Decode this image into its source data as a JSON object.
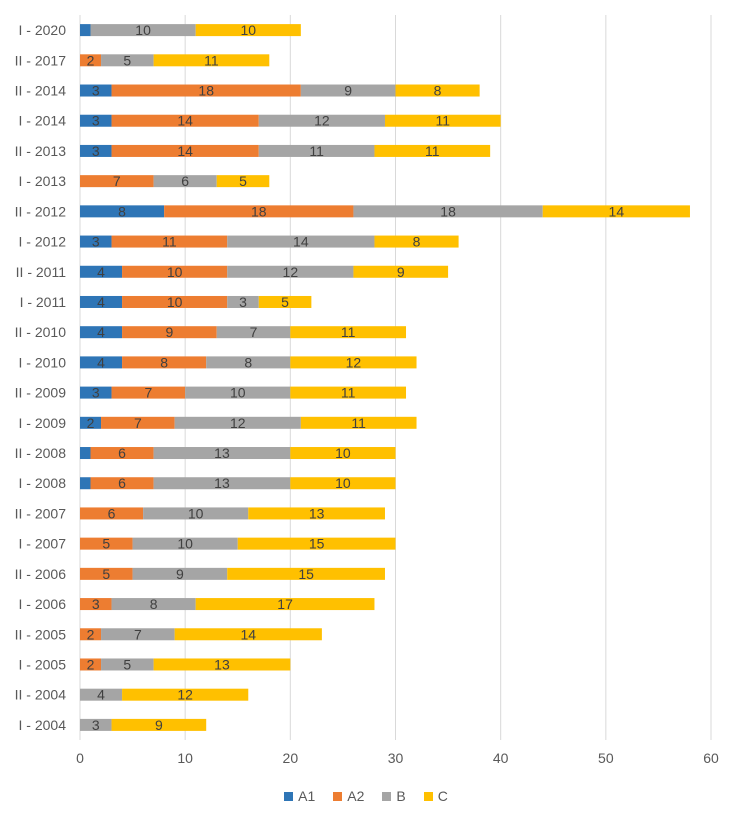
{
  "chart_data": {
    "type": "bar",
    "orientation": "horizontal",
    "stacked": true,
    "categories": [
      "I - 2020",
      "II - 2017",
      "II - 2014",
      "I - 2014",
      "II - 2013",
      "I - 2013",
      "II - 2012",
      "I - 2012",
      "II - 2011",
      "I - 2011",
      "II - 2010",
      "I - 2010",
      "II - 2009",
      "I - 2009",
      "II - 2008",
      "I - 2008",
      "II - 2007",
      "I - 2007",
      "II - 2006",
      "I - 2006",
      "II - 2005",
      "I - 2005",
      "II - 2004",
      "I - 2004"
    ],
    "series": [
      {
        "name": "A1",
        "color": "#2E75B6",
        "values": [
          1,
          0,
          3,
          3,
          3,
          0,
          8,
          3,
          4,
          4,
          4,
          4,
          3,
          2,
          1,
          1,
          0,
          0,
          0,
          0,
          0,
          0,
          0,
          0
        ]
      },
      {
        "name": "A2",
        "color": "#ED7D31",
        "values": [
          0,
          2,
          18,
          14,
          14,
          7,
          18,
          11,
          10,
          10,
          9,
          8,
          7,
          7,
          6,
          6,
          6,
          5,
          5,
          3,
          2,
          2,
          0,
          0
        ]
      },
      {
        "name": "B",
        "color": "#A5A5A5",
        "values": [
          10,
          5,
          9,
          12,
          11,
          6,
          18,
          14,
          12,
          3,
          7,
          8,
          10,
          12,
          13,
          13,
          10,
          10,
          9,
          8,
          7,
          5,
          4,
          3
        ]
      },
      {
        "name": "C",
        "color": "#FFC000",
        "values": [
          10,
          11,
          8,
          11,
          11,
          5,
          14,
          8,
          9,
          5,
          11,
          12,
          11,
          11,
          10,
          10,
          13,
          15,
          15,
          17,
          14,
          13,
          12,
          9
        ]
      }
    ],
    "data_labels": [
      [
        "",
        "10",
        "10"
      ],
      [
        "2",
        "5",
        "11"
      ],
      [
        "3",
        "18",
        "9",
        "8"
      ],
      [
        "3",
        "14",
        "12",
        "11"
      ],
      [
        "3",
        "14",
        "11",
        "11"
      ],
      [
        "7",
        "6",
        "5"
      ],
      [
        "8",
        "18",
        "18",
        "14"
      ],
      [
        "3",
        "11",
        "14",
        "8"
      ],
      [
        "4",
        "10",
        "12",
        "9"
      ],
      [
        "4",
        "10",
        "3",
        "5"
      ],
      [
        "4",
        "9",
        "7",
        "11"
      ],
      [
        "4",
        "8",
        "8",
        "12"
      ],
      [
        "3",
        "7",
        "10",
        "11"
      ],
      [
        "2",
        "7",
        "12",
        "11"
      ],
      [
        "",
        "6",
        "13",
        "10"
      ],
      [
        "",
        "6",
        "13",
        "10"
      ],
      [
        "6",
        "10",
        "13"
      ],
      [
        "5",
        "10",
        "15"
      ],
      [
        "5",
        "9",
        "15"
      ],
      [
        "3",
        "8",
        "17"
      ],
      [
        "2",
        "7",
        "14"
      ],
      [
        "2",
        "5",
        "13"
      ],
      [
        "4",
        "12"
      ],
      [
        "3",
        "9"
      ]
    ],
    "xticks": [
      "0",
      "10",
      "20",
      "30",
      "40",
      "50",
      "60"
    ],
    "xlim": [
      0,
      60
    ],
    "grid": true,
    "legend": "bottom",
    "colors": {
      "grid": "#D9D9D9",
      "text": "#595959",
      "label": "#404040"
    }
  }
}
